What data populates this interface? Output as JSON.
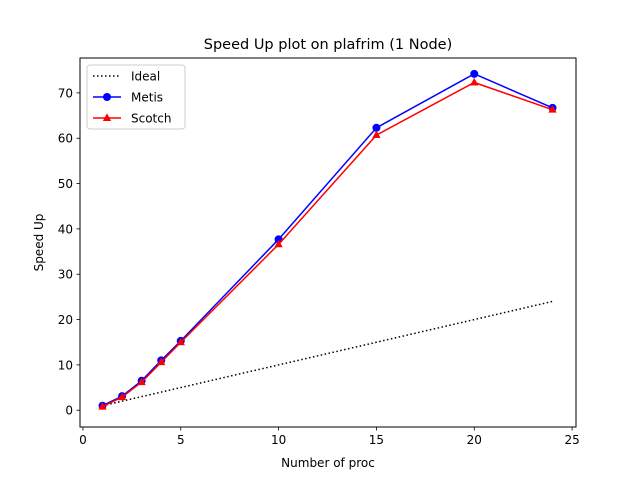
{
  "chart_data": {
    "type": "line",
    "title": "Speed Up plot on plafrim (1 Node)",
    "xlabel": "Number of proc",
    "ylabel": "Speed Up",
    "xlim": [
      -0.15,
      25.2
    ],
    "ylim": [
      -3.7,
      77.7
    ],
    "xticks": [
      0,
      5,
      10,
      15,
      20,
      25
    ],
    "yticks": [
      0,
      10,
      20,
      30,
      40,
      50,
      60,
      70
    ],
    "grid": false,
    "legend_position": "top-left",
    "series": [
      {
        "name": "Ideal",
        "color": "#000000",
        "line_style": "dotted",
        "marker": "none",
        "x": [
          1,
          24
        ],
        "y": [
          1,
          24
        ]
      },
      {
        "name": "Metis",
        "color": "#0000ff",
        "line_style": "solid",
        "marker": "circle",
        "x": [
          1,
          2,
          3,
          4,
          5,
          10,
          15,
          20,
          24
        ],
        "y": [
          1.0,
          3.1,
          6.5,
          11.0,
          15.3,
          37.7,
          62.3,
          74.2,
          66.7
        ]
      },
      {
        "name": "Scotch",
        "color": "#ff0000",
        "line_style": "solid",
        "marker": "triangle",
        "x": [
          1,
          2,
          3,
          4,
          5,
          10,
          15,
          20,
          24
        ],
        "y": [
          0.8,
          2.9,
          6.2,
          10.6,
          15.0,
          36.6,
          60.7,
          72.3,
          66.3
        ]
      }
    ]
  }
}
